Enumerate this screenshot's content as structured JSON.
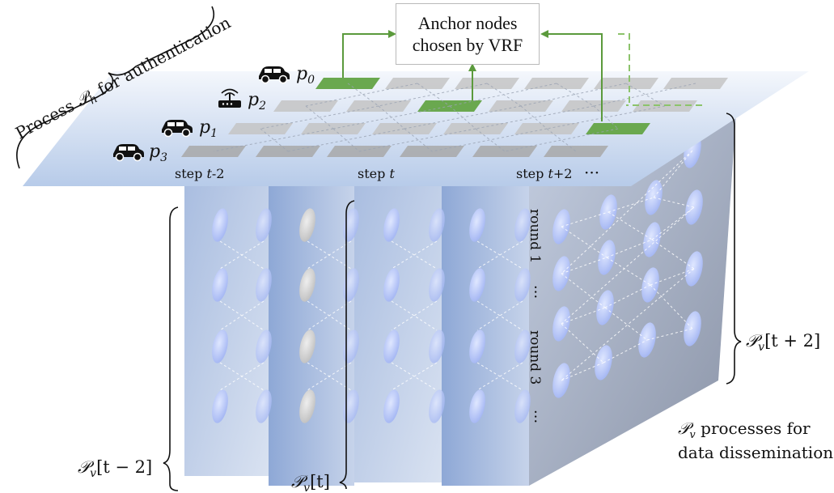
{
  "top_box": {
    "line1": "Anchor nodes",
    "line2": "chosen by VRF"
  },
  "process_h": {
    "prefix": "Process ",
    "symbol": "𝒫",
    "sub": "h",
    "suffix": " for authentication"
  },
  "peers": [
    {
      "sym": "p",
      "sub": "0",
      "icon": "car-icon"
    },
    {
      "sym": "p",
      "sub": "2",
      "icon": "router-icon"
    },
    {
      "sym": "p",
      "sub": "1",
      "icon": "car-icon"
    },
    {
      "sym": "p",
      "sub": "3",
      "icon": "car-icon"
    }
  ],
  "steps": [
    {
      "prefix": "step ",
      "var": "t",
      "suffix": "-2"
    },
    {
      "prefix": "step ",
      "var": "t",
      "suffix": ""
    },
    {
      "prefix": "step ",
      "var": "t",
      "suffix": "+2"
    }
  ],
  "ellipsis": "···",
  "rounds": {
    "first": "round 1",
    "middle": "···",
    "last": "round 3",
    "end": "···"
  },
  "pv_labels": [
    {
      "symbol": "𝒫",
      "sub": "v",
      "arg": "[t − 2]"
    },
    {
      "symbol": "𝒫",
      "sub": "v",
      "arg": "[t]"
    },
    {
      "symbol": "𝒫",
      "sub": "v",
      "arg": "[t + 2]"
    }
  ],
  "caption": {
    "symbol": "𝒫",
    "sub": "v",
    "line1": " processes for",
    "line2": "data dissemination"
  },
  "colors": {
    "green": "#6aa84f",
    "greenLine": "#5b9a3c",
    "grayCell": "#bdbdbd",
    "planeTop": "#c9daf2"
  }
}
